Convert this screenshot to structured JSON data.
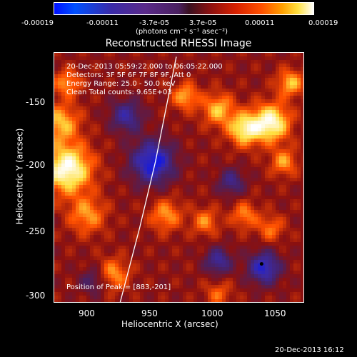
{
  "colorbar": {
    "ticks": [
      "-0.00019",
      "-0.00011",
      "-3.7e-05",
      "3.7e-05",
      "0.00011",
      "0.00019"
    ],
    "unit": "(photons cm⁻² s⁻¹ asec⁻²)"
  },
  "chart_data": {
    "type": "heatmap",
    "title": "Reconstructed RHESSI Image",
    "xlabel": "Heliocentric X (arcsec)",
    "ylabel": "Heliocentric Y (arcsec)",
    "xlim": [
      875,
      1066
    ],
    "ylim": [
      -307,
      -117
    ],
    "xticks": [
      900,
      950,
      1000,
      1050
    ],
    "yticks": [
      -150,
      -200,
      -250,
      -300
    ],
    "peak": [
      883,
      -201
    ],
    "limb_curve": [
      [
        925,
        -307
      ],
      [
        940,
        -250
      ],
      [
        952,
        -200
      ],
      [
        962,
        -150
      ],
      [
        968,
        -120
      ]
    ],
    "colorscale": [
      "#0010ff",
      "#3a2aa8",
      "#4a2060",
      "#8a1010",
      "#ff5000",
      "#ffe040",
      "#ffffff"
    ]
  },
  "annotations": {
    "time": "20-Dec-2013 05:59:22.000 to 06:05:22.000",
    "detectors": "Detectors: 3F 5F 6F 7F 8F 9F, Att 0",
    "energy": "Energy Range: 25.0 - 50.0 keV",
    "method": "Clean      Total counts: 9.65E+03",
    "peak": "Position of Peak = [883,-201]"
  },
  "xtick_labels": [
    "900",
    "950",
    "1000",
    "1050"
  ],
  "ytick_labels": [
    "-150",
    "-200",
    "-250",
    "-300"
  ],
  "timestamp": "20-Dec-2013 16:12"
}
